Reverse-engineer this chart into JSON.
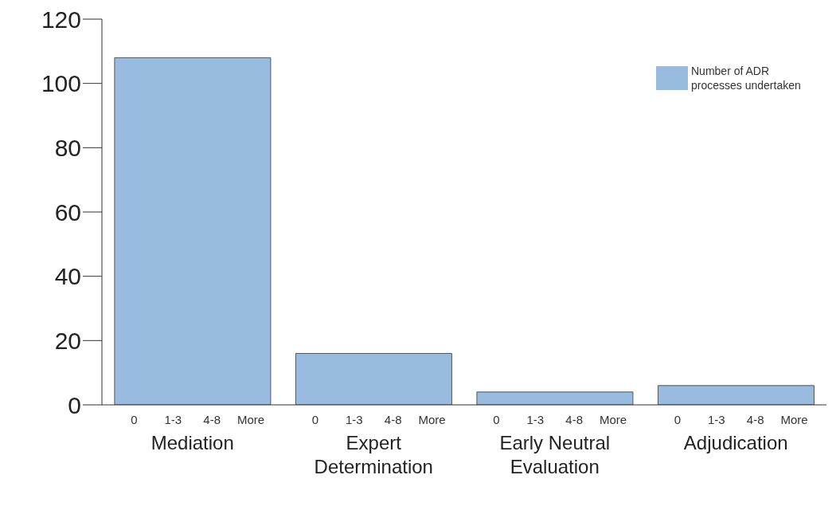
{
  "chart_data": {
    "type": "bar",
    "categories": [
      "Mediation",
      "Expert Determination",
      "Early Neutral Evaluation",
      "Adjudication"
    ],
    "series": [
      {
        "name": "Number of ADR processes undertaken",
        "color": "#98bbdf",
        "values": [
          108,
          16,
          4,
          6
        ]
      }
    ],
    "ylim": [
      0,
      120
    ],
    "yticks": [
      0,
      20,
      40,
      60,
      80,
      100,
      120
    ],
    "annotations": [
      "0",
      "1-3",
      "4-8",
      "More"
    ],
    "grid": false,
    "legend": "top right"
  }
}
